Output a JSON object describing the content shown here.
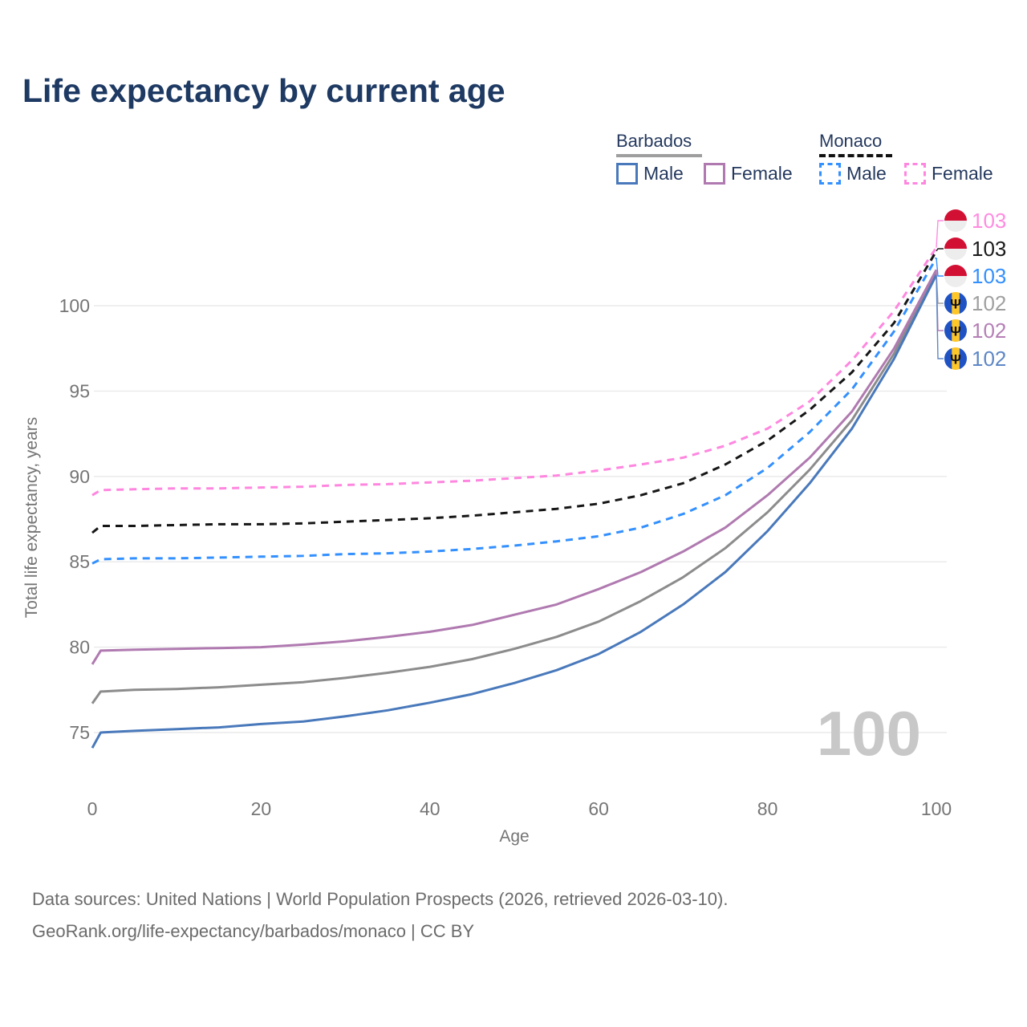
{
  "title": "Life expectancy by current age",
  "legend": {
    "groups": [
      {
        "country": "Barbados",
        "line_style": "solid",
        "underline_color": "#9e9e9e",
        "items": [
          {
            "label": "Male",
            "color": "#4979bb"
          },
          {
            "label": "Female",
            "color": "#b07ab0"
          }
        ]
      },
      {
        "country": "Monaco",
        "line_style": "dashed",
        "underline_color": "#111111",
        "items": [
          {
            "label": "Male",
            "color": "#3390ff"
          },
          {
            "label": "Female",
            "color": "#ff86df"
          }
        ]
      }
    ]
  },
  "chart_data": {
    "type": "line",
    "title": "Life expectancy by current age",
    "xlabel": "Age",
    "ylabel": "Total life expectancy, years",
    "x_ticks": [
      0,
      20,
      40,
      60,
      80,
      100
    ],
    "y_ticks": [
      75,
      80,
      85,
      90,
      95,
      100
    ],
    "xlim": [
      0,
      100
    ],
    "ylim": [
      73,
      105
    ],
    "grid": "horizontal-only",
    "legend_position": "top-right",
    "watermark": "100",
    "series": [
      {
        "name": "Monaco Female",
        "country": "Monaco",
        "sex": "Female",
        "color": "#ff86df",
        "dash": "dashed",
        "flag": "monaco",
        "end_label": "103",
        "end_label_color": "#ff8ce0",
        "end_row_y": 275,
        "points": [
          [
            0,
            88.9
          ],
          [
            1,
            89.2
          ],
          [
            5,
            89.25
          ],
          [
            10,
            89.3
          ],
          [
            15,
            89.3
          ],
          [
            20,
            89.35
          ],
          [
            25,
            89.4
          ],
          [
            30,
            89.5
          ],
          [
            35,
            89.55
          ],
          [
            40,
            89.65
          ],
          [
            45,
            89.75
          ],
          [
            50,
            89.9
          ],
          [
            55,
            90.05
          ],
          [
            60,
            90.35
          ],
          [
            65,
            90.7
          ],
          [
            70,
            91.1
          ],
          [
            75,
            91.8
          ],
          [
            80,
            92.8
          ],
          [
            85,
            94.4
          ],
          [
            90,
            96.8
          ],
          [
            95,
            99.7
          ],
          [
            100,
            103.4
          ]
        ]
      },
      {
        "name": "Monaco Total",
        "country": "Monaco",
        "sex": "Both",
        "color": "#161616",
        "dash": "dashed",
        "flag": "monaco",
        "end_label": "103",
        "end_label_color": "#1a1a1a",
        "end_row_y": 310,
        "points": [
          [
            0,
            86.7
          ],
          [
            1,
            87.1
          ],
          [
            5,
            87.1
          ],
          [
            10,
            87.15
          ],
          [
            15,
            87.2
          ],
          [
            20,
            87.2
          ],
          [
            25,
            87.25
          ],
          [
            30,
            87.35
          ],
          [
            35,
            87.45
          ],
          [
            40,
            87.55
          ],
          [
            45,
            87.7
          ],
          [
            50,
            87.9
          ],
          [
            55,
            88.1
          ],
          [
            60,
            88.4
          ],
          [
            65,
            88.9
          ],
          [
            70,
            89.6
          ],
          [
            75,
            90.7
          ],
          [
            80,
            92.1
          ],
          [
            85,
            93.9
          ],
          [
            90,
            96.1
          ],
          [
            95,
            99.0
          ],
          [
            100,
            103.2
          ]
        ]
      },
      {
        "name": "Monaco Male",
        "country": "Monaco",
        "sex": "Male",
        "color": "#3390ff",
        "dash": "dashed",
        "flag": "monaco",
        "end_label": "103",
        "end_label_color": "#3390ff",
        "end_row_y": 344,
        "points": [
          [
            0,
            84.9
          ],
          [
            1,
            85.15
          ],
          [
            5,
            85.2
          ],
          [
            10,
            85.2
          ],
          [
            15,
            85.25
          ],
          [
            20,
            85.3
          ],
          [
            25,
            85.35
          ],
          [
            30,
            85.45
          ],
          [
            35,
            85.5
          ],
          [
            40,
            85.6
          ],
          [
            45,
            85.75
          ],
          [
            50,
            85.95
          ],
          [
            55,
            86.2
          ],
          [
            60,
            86.5
          ],
          [
            65,
            87.0
          ],
          [
            70,
            87.8
          ],
          [
            75,
            88.9
          ],
          [
            80,
            90.5
          ],
          [
            85,
            92.6
          ],
          [
            90,
            95.1
          ],
          [
            95,
            98.5
          ],
          [
            100,
            102.8
          ]
        ]
      },
      {
        "name": "Barbados Total",
        "country": "Barbados",
        "sex": "Both",
        "color": "#8c8c8c",
        "dash": "solid",
        "flag": "barbados",
        "end_label": "102",
        "end_label_color": "#a0a0a0",
        "end_row_y": 378,
        "points": [
          [
            0,
            76.7
          ],
          [
            1,
            77.4
          ],
          [
            5,
            77.5
          ],
          [
            10,
            77.55
          ],
          [
            15,
            77.65
          ],
          [
            20,
            77.8
          ],
          [
            25,
            77.95
          ],
          [
            30,
            78.2
          ],
          [
            35,
            78.5
          ],
          [
            40,
            78.85
          ],
          [
            45,
            79.3
          ],
          [
            50,
            79.9
          ],
          [
            55,
            80.6
          ],
          [
            60,
            81.5
          ],
          [
            65,
            82.7
          ],
          [
            70,
            84.1
          ],
          [
            75,
            85.8
          ],
          [
            80,
            87.9
          ],
          [
            85,
            90.4
          ],
          [
            90,
            93.3
          ],
          [
            95,
            97.2
          ],
          [
            100,
            101.95
          ]
        ]
      },
      {
        "name": "Barbados Female",
        "country": "Barbados",
        "sex": "Female",
        "color": "#b07ab0",
        "dash": "solid",
        "flag": "barbados",
        "end_label": "102",
        "end_label_color": "#b57fb5",
        "end_row_y": 412,
        "points": [
          [
            0,
            79.0
          ],
          [
            1,
            79.8
          ],
          [
            5,
            79.85
          ],
          [
            10,
            79.9
          ],
          [
            15,
            79.95
          ],
          [
            20,
            80.0
          ],
          [
            25,
            80.15
          ],
          [
            30,
            80.35
          ],
          [
            35,
            80.6
          ],
          [
            40,
            80.9
          ],
          [
            45,
            81.3
          ],
          [
            50,
            81.9
          ],
          [
            55,
            82.5
          ],
          [
            60,
            83.4
          ],
          [
            65,
            84.4
          ],
          [
            70,
            85.6
          ],
          [
            75,
            87.0
          ],
          [
            80,
            88.9
          ],
          [
            85,
            91.1
          ],
          [
            90,
            93.8
          ],
          [
            95,
            97.5
          ],
          [
            100,
            102.1
          ]
        ]
      },
      {
        "name": "Barbados Male",
        "country": "Barbados",
        "sex": "Male",
        "color": "#4979bb",
        "dash": "solid",
        "flag": "barbados",
        "end_label": "102",
        "end_label_color": "#5e87c5",
        "end_row_y": 447,
        "points": [
          [
            0,
            74.1
          ],
          [
            1,
            75.0
          ],
          [
            5,
            75.1
          ],
          [
            10,
            75.2
          ],
          [
            15,
            75.3
          ],
          [
            20,
            75.5
          ],
          [
            25,
            75.65
          ],
          [
            30,
            75.95
          ],
          [
            35,
            76.3
          ],
          [
            40,
            76.75
          ],
          [
            45,
            77.25
          ],
          [
            50,
            77.9
          ],
          [
            55,
            78.65
          ],
          [
            60,
            79.6
          ],
          [
            65,
            80.9
          ],
          [
            70,
            82.5
          ],
          [
            75,
            84.4
          ],
          [
            80,
            86.8
          ],
          [
            85,
            89.6
          ],
          [
            90,
            92.8
          ],
          [
            95,
            96.9
          ],
          [
            100,
            101.8
          ]
        ]
      }
    ],
    "colors": {
      "grid": "#eaeaea",
      "axis_text": "#757575",
      "watermark": "#c8c8c8",
      "monaco_flag_red": "#d21034",
      "monaco_flag_white": "#ededed",
      "barbados_flag_blue": "#1f53c4",
      "barbados_flag_yellow": "#ffc726",
      "barbados_trident": "#111111"
    }
  },
  "footer": {
    "line1": "Data sources: United Nations | World Population Prospects (2026, retrieved 2026-03-10).",
    "line2": "GeoRank.org/life-expectancy/barbados/monaco | CC BY"
  }
}
